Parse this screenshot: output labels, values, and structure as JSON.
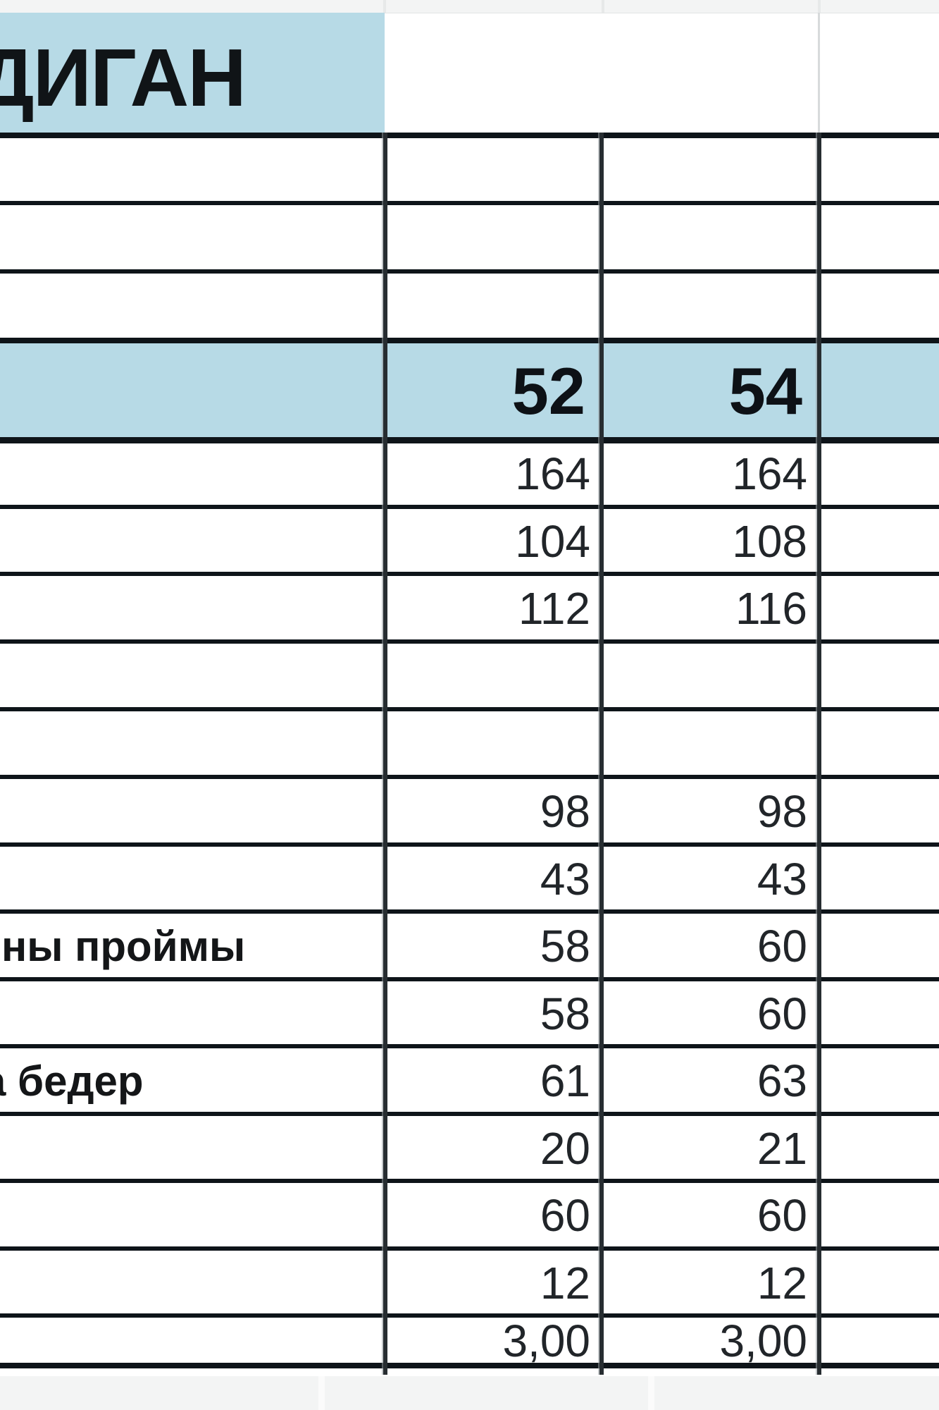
{
  "app": {
    "kind": "spreadsheet size chart (zoomed crop)"
  },
  "colors": {
    "header_fill": "#b7dae6",
    "table_border": "#0e1419",
    "vertical_border": "#272d31",
    "light_gridline": "#d7dadb",
    "sheet_strip": "#f3f4f4",
    "number_text": "#212529",
    "bold_text": "#0d1116"
  },
  "title": {
    "visible_text": "ДИГАН"
  },
  "size_columns": [
    "52",
    "54"
  ],
  "table": {
    "rows": [
      {
        "label": "",
        "v52": "164",
        "v54": "164"
      },
      {
        "label": "",
        "v52": "104",
        "v54": "108"
      },
      {
        "label": "",
        "v52": "112",
        "v54": "116"
      },
      {
        "label": "",
        "v52": "",
        "v54": ""
      },
      {
        "label": "",
        "v52": "",
        "v54": ""
      },
      {
        "label": "",
        "v52": "98",
        "v54": "98"
      },
      {
        "label": "",
        "v52": "43",
        "v54": "43"
      },
      {
        "label": "ны проймы",
        "v52": "58",
        "v54": "60"
      },
      {
        "label": "",
        "v52": "58",
        "v54": "60"
      },
      {
        "label": "а бедер",
        "v52": "61",
        "v54": "63"
      },
      {
        "label": "",
        "v52": "20",
        "v54": "21"
      },
      {
        "label": "",
        "v52": "60",
        "v54": "60"
      },
      {
        "label": "",
        "v52": "12",
        "v54": "12"
      },
      {
        "label": "",
        "v52": "3,00",
        "v54": "3,00"
      }
    ]
  }
}
